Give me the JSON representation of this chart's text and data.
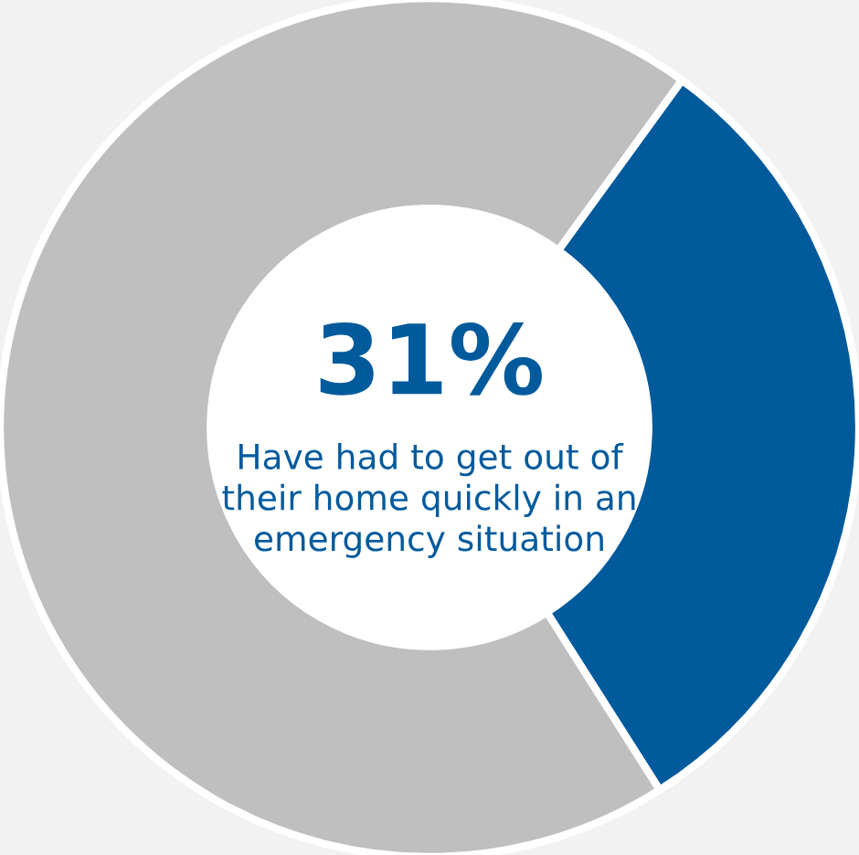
{
  "chart_data": {
    "type": "donut",
    "categories": [
      null,
      null
    ],
    "values": [
      31,
      69
    ],
    "colors": [
      "#005a9c",
      "#bfbfbf"
    ],
    "annotations": [
      "31%",
      "Have had to get out of\ntheir home quickly in an\nemergency situation"
    ],
    "legend": false
  }
}
